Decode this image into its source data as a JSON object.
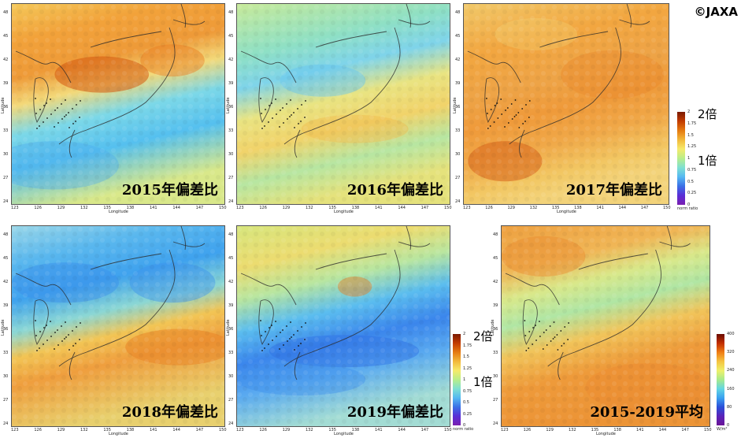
{
  "copyright": "©JAXA",
  "axes": {
    "x_label": "Longitude",
    "y_label": "Latitude",
    "x_ticks": [
      "123",
      "126",
      "129",
      "132",
      "135",
      "138",
      "141",
      "144",
      "147",
      "150"
    ],
    "y_ticks": [
      "48",
      "45",
      "42",
      "39",
      "36",
      "33",
      "30",
      "27",
      "24"
    ]
  },
  "panels": [
    {
      "label": "2015年偏差比"
    },
    {
      "label": "2016年偏差比"
    },
    {
      "label": "2017年偏差比"
    },
    {
      "label": "2018年偏差比"
    },
    {
      "label": "2019年偏差比"
    },
    {
      "label": "2015-2019平均"
    }
  ],
  "ratio_colorbar": {
    "unit": "norm ratio",
    "ticks": [
      "2",
      "1.75",
      "1.5",
      "1.25",
      "1",
      "0.75",
      "0.5",
      "0.25",
      "0"
    ],
    "note_top": "2倍",
    "note_mid": "1倍",
    "colors": [
      "#7a1a00",
      "#c23b00",
      "#e57a10",
      "#f2b83a",
      "#f6ea6a",
      "#b9ee8a",
      "#7fe0d2",
      "#55b8f2",
      "#3a6fe6",
      "#5a2dd6",
      "#7a1fb0"
    ]
  },
  "mean_colorbar": {
    "unit": "W/m²",
    "ticks": [
      "400",
      "320",
      "240",
      "160",
      "80",
      "0"
    ],
    "colors": [
      "#6a0c00",
      "#c22e00",
      "#ef7d14",
      "#f5c441",
      "#eef06a",
      "#a7ea8c",
      "#62d6e3",
      "#3aa0f0",
      "#2b4fd8",
      "#5a23b8",
      "#6a1496"
    ]
  }
}
